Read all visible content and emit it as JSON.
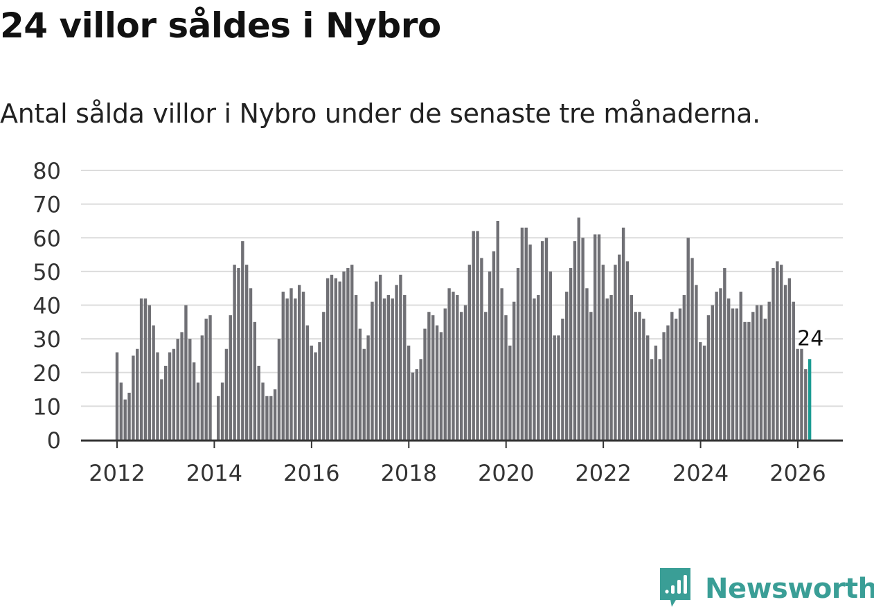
{
  "header": {
    "title": "24 villor såldes i Nybro",
    "subtitle": "Antal sålda villor i Nybro under de senaste tre månaderna."
  },
  "brand": {
    "name": "Newsworthy",
    "color": "#3a9e96",
    "icon": "newsworthy-logo-icon"
  },
  "chart_data": {
    "type": "bar",
    "title": "24 villor såldes i Nybro",
    "subtitle": "Antal sålda villor i Nybro under de senaste tre månaderna.",
    "xlabel": "",
    "ylabel": "",
    "ylim": [
      0,
      80
    ],
    "yticks": [
      0,
      10,
      20,
      30,
      40,
      50,
      60,
      70,
      80
    ],
    "xticks": [
      2012,
      2014,
      2016,
      2018,
      2020,
      2022,
      2024,
      2026
    ],
    "xlim": [
      2011.25,
      2026.9
    ],
    "start": 2012.0,
    "step_years": 0.0833,
    "grid": true,
    "bar_color": "#707075",
    "highlight_color": "#1a9b92",
    "highlight_label": "24",
    "values": [
      26,
      17,
      12,
      14,
      25,
      27,
      42,
      42,
      40,
      34,
      26,
      18,
      22,
      26,
      27,
      30,
      32,
      40,
      30,
      23,
      17,
      31,
      36,
      37,
      0,
      13,
      17,
      27,
      37,
      52,
      51,
      59,
      52,
      45,
      35,
      22,
      17,
      13,
      13,
      15,
      30,
      44,
      42,
      45,
      42,
      46,
      44,
      34,
      28,
      26,
      29,
      38,
      48,
      49,
      48,
      47,
      50,
      51,
      52,
      43,
      33,
      27,
      31,
      41,
      47,
      49,
      42,
      43,
      42,
      46,
      49,
      43,
      28,
      20,
      21,
      24,
      33,
      38,
      37,
      34,
      32,
      39,
      45,
      44,
      43,
      38,
      40,
      52,
      62,
      62,
      54,
      38,
      50,
      56,
      65,
      45,
      37,
      28,
      41,
      51,
      63,
      63,
      58,
      42,
      43,
      59,
      60,
      50,
      31,
      31,
      36,
      44,
      51,
      59,
      66,
      60,
      45,
      38,
      61,
      61,
      52,
      42,
      43,
      52,
      55,
      63,
      53,
      43,
      38,
      38,
      36,
      31,
      24,
      28,
      24,
      32,
      34,
      38,
      36,
      39,
      43,
      60,
      54,
      46,
      29,
      28,
      37,
      40,
      44,
      45,
      51,
      42,
      39,
      39,
      44,
      35,
      35,
      38,
      40,
      40,
      36,
      41,
      51,
      53,
      52,
      46,
      48,
      41,
      27,
      27,
      21,
      24
    ]
  }
}
